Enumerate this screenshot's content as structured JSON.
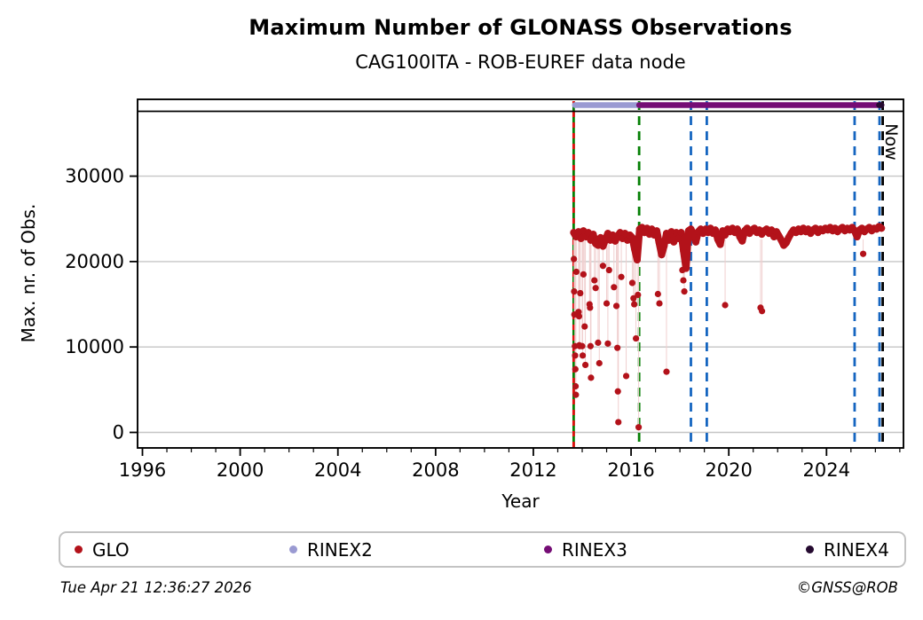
{
  "title": "Maximum Number of GLONASS Observations",
  "subtitle": "CAG100ITA - ROB-EUREF data node",
  "footer": {
    "timestamp": "Tue Apr 21 12:36:27 2026",
    "credit": "©GNSS@ROB"
  },
  "legend": [
    {
      "label": "GLO",
      "color": "#b3121a"
    },
    {
      "label": "RINEX2",
      "color": "#9a9ad2"
    },
    {
      "label": "RINEX3",
      "color": "#750d75"
    },
    {
      "label": "RINEX4",
      "color": "#250a30"
    }
  ],
  "chart_data": {
    "type": "scatter",
    "title": "Maximum Number of GLONASS Observations",
    "subtitle": "CAG100ITA - ROB-EUREF data node",
    "xlabel": "Year",
    "ylabel": "Max. nr. of Obs.",
    "now_label": "Now",
    "grid": true,
    "xlim": [
      1995.8,
      2027.15
    ],
    "ylim": [
      0,
      38900
    ],
    "x_major_ticks": [
      1996,
      2000,
      2004,
      2008,
      2012,
      2016,
      2020,
      2024
    ],
    "x_minor_step": 1,
    "y_ticks": [
      0,
      10000,
      20000,
      30000
    ],
    "grid_color": "#c6c6c6",
    "events": [
      {
        "name": "glo-start-line",
        "year": 2013.65,
        "color": "#068006",
        "dash": ""
      },
      {
        "name": "glo-start-overlay",
        "year": 2013.65,
        "color": "#e01010",
        "dash": "6 6"
      },
      {
        "name": "rinex3-start-line",
        "year": 2016.33,
        "color": "#068006",
        "dash": "10 7"
      },
      {
        "name": "event-line-2018",
        "year": 2018.45,
        "color": "#1565c0",
        "dash": "10 7"
      },
      {
        "name": "event-line-2019",
        "year": 2019.1,
        "color": "#1565c0",
        "dash": "10 7"
      },
      {
        "name": "event-line-2025",
        "year": 2025.15,
        "color": "#1565c0",
        "dash": "10 7"
      },
      {
        "name": "event-line-2026",
        "year": 2026.17,
        "color": "#1565c0",
        "dash": "10 7"
      },
      {
        "name": "now-line",
        "year": 2026.3,
        "color": "#000000",
        "dash": "10 7"
      }
    ],
    "availability_bars": [
      {
        "name": "RINEX2",
        "start": 2013.7,
        "end": 2016.33,
        "color": "#9a9ad2"
      },
      {
        "name": "RINEX3",
        "start": 2016.33,
        "end": 2026.25,
        "color": "#750d75"
      },
      {
        "name": "RINEX4",
        "start": 2026.15,
        "end": 2026.25,
        "color": "#250a30"
      }
    ],
    "series": [
      {
        "name": "GLO",
        "color": "#b3121a",
        "dropline_color": "#f0cfcf",
        "band": [
          [
            2013.65,
            23400
          ],
          [
            2013.75,
            22900
          ],
          [
            2013.85,
            23500
          ],
          [
            2013.95,
            22700
          ],
          [
            2014.05,
            23600
          ],
          [
            2014.15,
            22900
          ],
          [
            2014.25,
            23400
          ],
          [
            2014.35,
            22500
          ],
          [
            2014.45,
            23200
          ],
          [
            2014.55,
            22100
          ],
          [
            2014.65,
            21900
          ],
          [
            2014.75,
            22800
          ],
          [
            2014.85,
            21800
          ],
          [
            2014.95,
            22600
          ],
          [
            2015.05,
            23300
          ],
          [
            2015.15,
            22500
          ],
          [
            2015.25,
            23100
          ],
          [
            2015.35,
            22400
          ],
          [
            2015.45,
            23000
          ],
          [
            2015.55,
            23400
          ],
          [
            2015.65,
            22700
          ],
          [
            2015.75,
            23300
          ],
          [
            2015.85,
            22500
          ],
          [
            2015.95,
            23100
          ],
          [
            2016.05,
            22800
          ],
          [
            2016.15,
            21400
          ],
          [
            2016.25,
            20200
          ],
          [
            2016.35,
            23800
          ],
          [
            2016.45,
            24000
          ],
          [
            2016.55,
            23400
          ],
          [
            2016.65,
            23900
          ],
          [
            2016.75,
            23200
          ],
          [
            2016.85,
            23800
          ],
          [
            2016.95,
            23100
          ],
          [
            2017.05,
            23600
          ],
          [
            2017.15,
            22200
          ],
          [
            2017.25,
            20800
          ],
          [
            2017.35,
            21800
          ],
          [
            2017.45,
            23300
          ],
          [
            2017.55,
            22500
          ],
          [
            2017.65,
            23500
          ],
          [
            2017.75,
            22300
          ],
          [
            2017.85,
            23400
          ],
          [
            2017.95,
            22700
          ],
          [
            2018.05,
            23400
          ],
          [
            2018.15,
            21200
          ],
          [
            2018.25,
            19200
          ],
          [
            2018.35,
            23600
          ],
          [
            2018.45,
            23800
          ],
          [
            2018.55,
            23200
          ],
          [
            2018.65,
            22300
          ],
          [
            2018.75,
            23500
          ],
          [
            2018.85,
            23800
          ],
          [
            2018.95,
            23300
          ],
          [
            2019.05,
            23800
          ],
          [
            2019.15,
            23400
          ],
          [
            2019.25,
            23900
          ],
          [
            2019.35,
            23300
          ],
          [
            2019.45,
            23700
          ],
          [
            2019.55,
            22600
          ],
          [
            2019.65,
            22000
          ],
          [
            2019.75,
            23600
          ],
          [
            2019.85,
            23100
          ],
          [
            2019.95,
            23800
          ],
          [
            2020.05,
            23500
          ],
          [
            2020.15,
            23900
          ],
          [
            2020.25,
            23400
          ],
          [
            2020.35,
            23800
          ],
          [
            2020.45,
            22900
          ],
          [
            2020.55,
            22400
          ],
          [
            2020.65,
            23600
          ],
          [
            2020.75,
            23900
          ],
          [
            2020.85,
            23300
          ],
          [
            2020.95,
            23700
          ],
          [
            2021.05,
            23900
          ],
          [
            2021.15,
            23400
          ],
          [
            2021.25,
            23700
          ],
          [
            2021.35,
            23200
          ],
          [
            2021.45,
            23600
          ],
          [
            2021.55,
            23800
          ],
          [
            2021.65,
            23300
          ],
          [
            2021.75,
            23700
          ],
          [
            2021.85,
            22900
          ],
          [
            2021.95,
            23500
          ],
          [
            2022.05,
            23000
          ],
          [
            2022.15,
            22500
          ],
          [
            2022.25,
            21900
          ],
          [
            2022.35,
            22200
          ],
          [
            2022.45,
            22800
          ],
          [
            2022.55,
            23300
          ],
          [
            2022.65,
            23700
          ],
          [
            2022.75,
            23400
          ],
          [
            2022.85,
            23800
          ],
          [
            2022.95,
            23500
          ],
          [
            2023.05,
            23900
          ],
          [
            2023.15,
            23500
          ],
          [
            2023.25,
            23800
          ],
          [
            2023.35,
            23300
          ],
          [
            2023.45,
            23700
          ],
          [
            2023.55,
            23900
          ],
          [
            2023.65,
            23400
          ],
          [
            2023.75,
            23800
          ],
          [
            2023.85,
            23600
          ],
          [
            2023.95,
            23900
          ],
          [
            2024.05,
            23700
          ],
          [
            2024.15,
            24000
          ],
          [
            2024.25,
            23600
          ],
          [
            2024.35,
            23900
          ],
          [
            2024.45,
            23500
          ],
          [
            2024.55,
            23800
          ],
          [
            2024.65,
            24000
          ],
          [
            2024.75,
            23600
          ],
          [
            2024.85,
            23900
          ],
          [
            2024.95,
            23700
          ],
          [
            2025.05,
            24000
          ],
          [
            2025.15,
            23600
          ],
          [
            2025.25,
            22900
          ],
          [
            2025.35,
            23700
          ],
          [
            2025.45,
            23900
          ],
          [
            2025.55,
            23500
          ],
          [
            2025.65,
            23800
          ],
          [
            2025.75,
            24000
          ],
          [
            2025.85,
            23600
          ],
          [
            2025.95,
            23900
          ],
          [
            2026.05,
            23800
          ],
          [
            2026.15,
            24100
          ],
          [
            2026.25,
            23900
          ]
        ],
        "outliers": [
          [
            2013.66,
            20300
          ],
          [
            2013.67,
            16500
          ],
          [
            2013.68,
            13800
          ],
          [
            2013.7,
            10100
          ],
          [
            2013.71,
            9000
          ],
          [
            2013.72,
            7400
          ],
          [
            2013.73,
            5400
          ],
          [
            2013.74,
            4400
          ],
          [
            2013.76,
            18800
          ],
          [
            2013.85,
            14100
          ],
          [
            2013.87,
            13600
          ],
          [
            2013.88,
            10200
          ],
          [
            2013.9,
            10100
          ],
          [
            2013.92,
            16300
          ],
          [
            2014.0,
            10100
          ],
          [
            2014.02,
            9000
          ],
          [
            2014.05,
            18500
          ],
          [
            2014.1,
            12400
          ],
          [
            2014.13,
            7900
          ],
          [
            2014.3,
            15000
          ],
          [
            2014.32,
            14600
          ],
          [
            2014.34,
            10100
          ],
          [
            2014.36,
            6400
          ],
          [
            2014.5,
            17800
          ],
          [
            2014.55,
            16900
          ],
          [
            2014.65,
            10500
          ],
          [
            2014.7,
            8100
          ],
          [
            2014.85,
            19500
          ],
          [
            2015.0,
            15100
          ],
          [
            2015.05,
            10400
          ],
          [
            2015.1,
            19000
          ],
          [
            2015.3,
            17000
          ],
          [
            2015.4,
            14800
          ],
          [
            2015.44,
            9900
          ],
          [
            2015.46,
            4800
          ],
          [
            2015.48,
            1200
          ],
          [
            2015.6,
            18200
          ],
          [
            2015.8,
            6600
          ],
          [
            2016.05,
            17500
          ],
          [
            2016.1,
            15700
          ],
          [
            2016.13,
            15000
          ],
          [
            2016.2,
            11000
          ],
          [
            2016.28,
            16100
          ],
          [
            2016.31,
            600
          ],
          [
            2017.1,
            16200
          ],
          [
            2017.16,
            15100
          ],
          [
            2017.45,
            7100
          ],
          [
            2018.1,
            19000
          ],
          [
            2018.14,
            17800
          ],
          [
            2018.18,
            16500
          ],
          [
            2019.85,
            14900
          ],
          [
            2021.3,
            14600
          ],
          [
            2021.36,
            14200
          ],
          [
            2025.5,
            20900
          ]
        ]
      }
    ]
  }
}
